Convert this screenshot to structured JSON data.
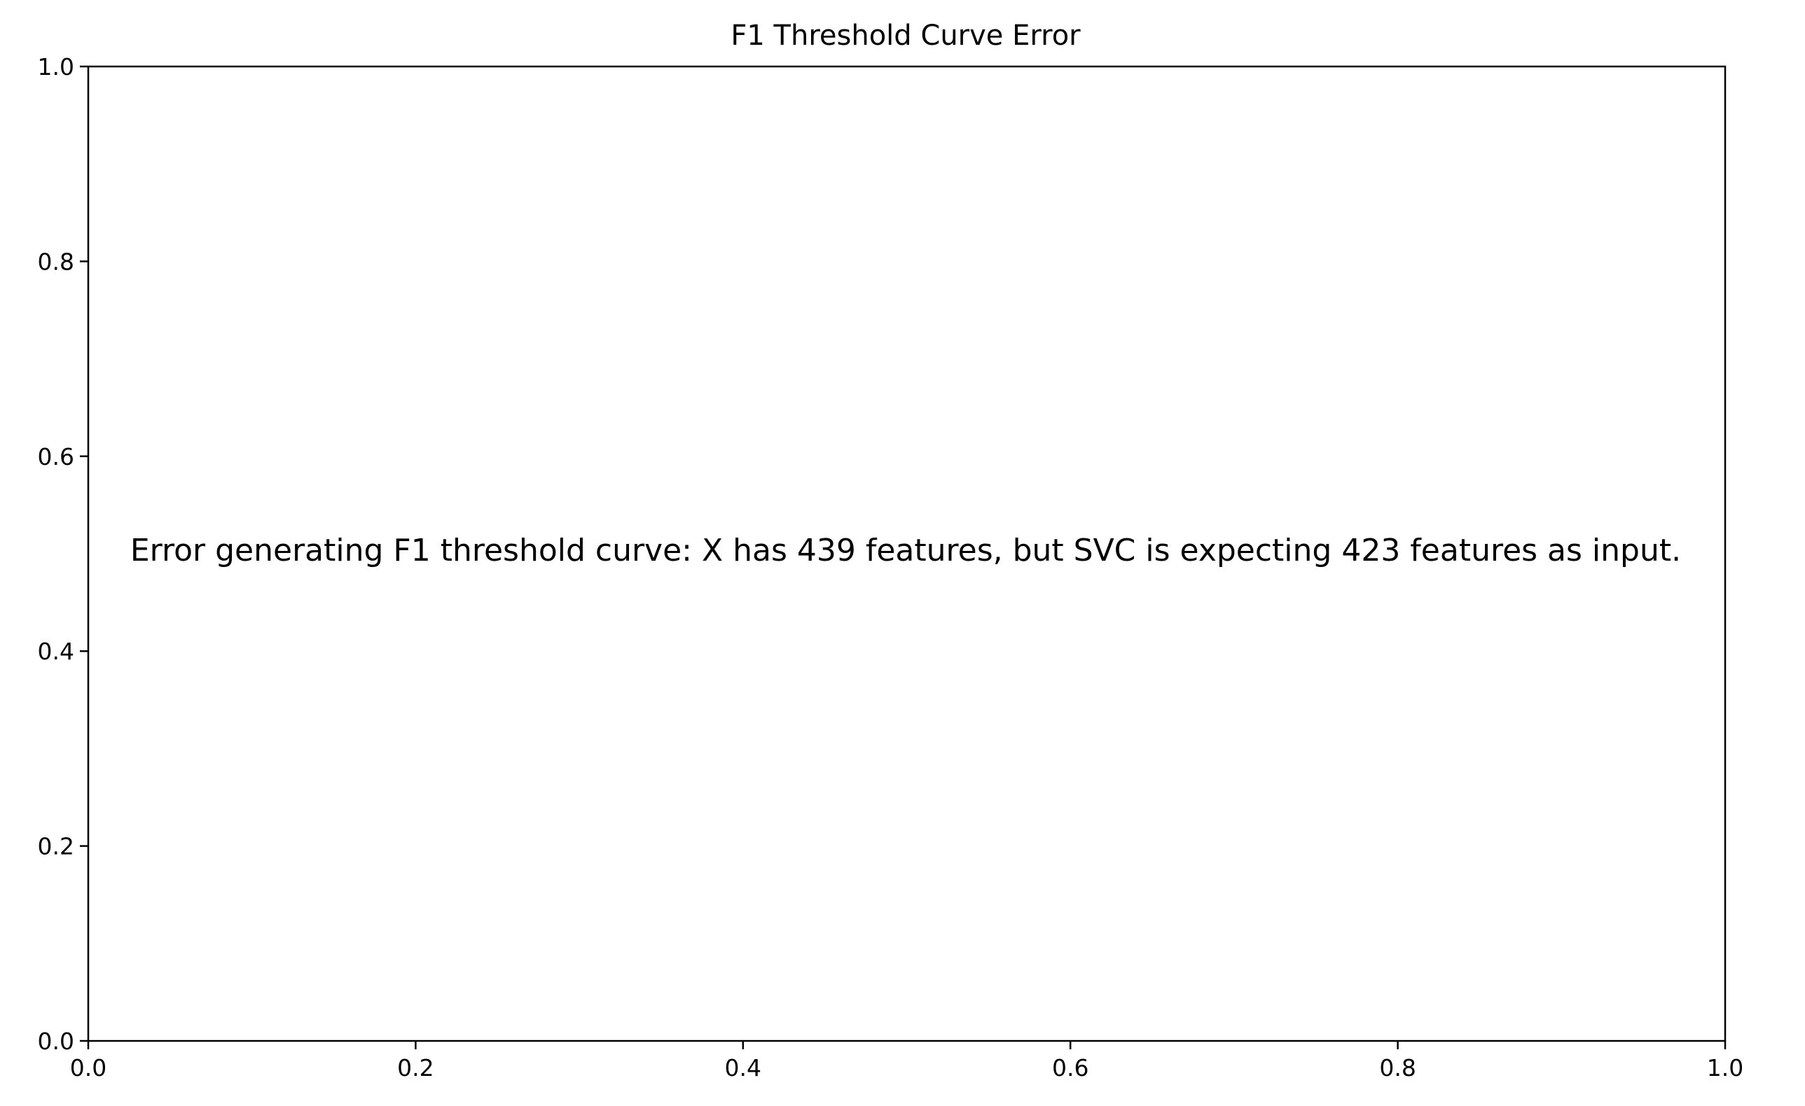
{
  "chart_data": {
    "type": "line",
    "title": "F1 Threshold Curve Error",
    "xlabel": "",
    "ylabel": "",
    "xlim": [
      0.0,
      1.0
    ],
    "ylim": [
      0.0,
      1.0
    ],
    "x_ticks": [
      "0.0",
      "0.2",
      "0.4",
      "0.6",
      "0.8",
      "1.0"
    ],
    "y_ticks": [
      "0.0",
      "0.2",
      "0.4",
      "0.6",
      "0.8",
      "1.0"
    ],
    "series": [],
    "grid": false,
    "annotation": "Error generating F1 threshold curve: X has 439 features, but SVC is expecting 423 features as input."
  }
}
